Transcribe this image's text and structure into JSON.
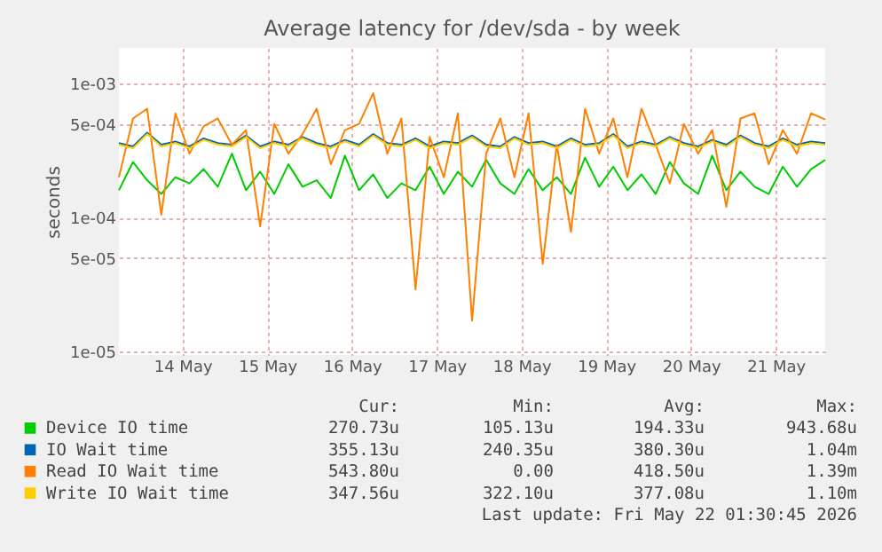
{
  "chart_data": {
    "type": "line",
    "title": "Average latency for /dev/sda - by week",
    "ylabel": "seconds",
    "log": true,
    "grid": true,
    "legend": "bottom",
    "marker": "none",
    "line_style": "solid",
    "xlim": [
      "2026-05-13T18:00",
      "2026-05-22T02:00"
    ],
    "xticks": [
      {
        "value": "2026-05-14T12:00",
        "label": "14 May"
      },
      {
        "value": "2026-05-15T12:00",
        "label": "15 May"
      },
      {
        "value": "2026-05-16T12:00",
        "label": "16 May"
      },
      {
        "value": "2026-05-17T12:00",
        "label": "17 May"
      },
      {
        "value": "2026-05-18T12:00",
        "label": "18 May"
      },
      {
        "value": "2026-05-19T12:00",
        "label": "19 May"
      },
      {
        "value": "2026-05-20T12:00",
        "label": "20 May"
      },
      {
        "value": "2026-05-21T12:00",
        "label": "21 May"
      }
    ],
    "ylim": [
      9.4e-06,
      0.00185
    ],
    "yticks": [
      {
        "value": 1e-05,
        "label": "1e-05"
      },
      {
        "value": 5e-05,
        "label": "5e-05"
      },
      {
        "value": 0.0001,
        "label": "1e-04"
      },
      {
        "value": 0.0005,
        "label": "5e-04"
      },
      {
        "value": 0.001,
        "label": "1e-03"
      }
    ],
    "x": [
      "2026-05-13T18:00",
      "2026-05-13T22:00",
      "2026-05-14T02:00",
      "2026-05-14T06:00",
      "2026-05-14T10:00",
      "2026-05-14T14:00",
      "2026-05-14T18:00",
      "2026-05-14T22:00",
      "2026-05-15T02:00",
      "2026-05-15T06:00",
      "2026-05-15T10:00",
      "2026-05-15T14:00",
      "2026-05-15T18:00",
      "2026-05-15T22:00",
      "2026-05-16T02:00",
      "2026-05-16T06:00",
      "2026-05-16T10:00",
      "2026-05-16T14:00",
      "2026-05-16T18:00",
      "2026-05-16T22:00",
      "2026-05-17T02:00",
      "2026-05-17T06:00",
      "2026-05-17T10:00",
      "2026-05-17T14:00",
      "2026-05-17T18:00",
      "2026-05-17T22:00",
      "2026-05-18T02:00",
      "2026-05-18T06:00",
      "2026-05-18T10:00",
      "2026-05-18T14:00",
      "2026-05-18T18:00",
      "2026-05-18T22:00",
      "2026-05-19T02:00",
      "2026-05-19T06:00",
      "2026-05-19T10:00",
      "2026-05-19T14:00",
      "2026-05-19T18:00",
      "2026-05-19T22:00",
      "2026-05-20T02:00",
      "2026-05-20T06:00",
      "2026-05-20T10:00",
      "2026-05-20T14:00",
      "2026-05-20T18:00",
      "2026-05-20T22:00",
      "2026-05-21T02:00",
      "2026-05-21T06:00",
      "2026-05-21T10:00",
      "2026-05-21T14:00",
      "2026-05-21T18:00",
      "2026-05-21T22:00",
      "2026-05-22T02:00"
    ],
    "series": [
      {
        "name": "Device IO time",
        "color": "#00cc00",
        "values": [
          0.00016,
          0.00026,
          0.00019,
          0.00015,
          0.0002,
          0.00018,
          0.00023,
          0.00017,
          0.0003,
          0.00016,
          0.00022,
          0.00015,
          0.00025,
          0.00017,
          0.00019,
          0.00014,
          0.00029,
          0.00016,
          0.00021,
          0.00014,
          0.00018,
          0.00016,
          0.00024,
          0.00015,
          0.00022,
          0.00017,
          0.00027,
          0.00018,
          0.00015,
          0.00023,
          0.00016,
          0.0002,
          0.00015,
          0.00028,
          0.00017,
          0.00024,
          0.00016,
          0.00021,
          0.00015,
          0.00026,
          0.00018,
          0.00015,
          0.00029,
          0.00016,
          0.00022,
          0.00017,
          0.00015,
          0.00024,
          0.00017,
          0.00023,
          0.00027
        ]
      },
      {
        "name": "IO Wait time",
        "color": "#0066b3",
        "values": [
          0.00036,
          0.00034,
          0.00043,
          0.00035,
          0.00037,
          0.00034,
          0.00039,
          0.00036,
          0.00035,
          0.00041,
          0.00034,
          0.00037,
          0.00035,
          0.0004,
          0.00036,
          0.00034,
          0.00038,
          0.00035,
          0.00042,
          0.00036,
          0.00035,
          0.00039,
          0.00034,
          0.00037,
          0.00036,
          0.00041,
          0.00035,
          0.00034,
          0.0004,
          0.00036,
          0.00037,
          0.00034,
          0.00039,
          0.00035,
          0.00036,
          0.00042,
          0.00034,
          0.00037,
          0.00035,
          0.0004,
          0.00036,
          0.00034,
          0.00038,
          0.00035,
          0.00041,
          0.00036,
          0.00034,
          0.00039,
          0.00035,
          0.00037,
          0.00036
        ]
      },
      {
        "name": "Read IO Wait time",
        "color": "#ff8000",
        "values": [
          0.0002,
          0.00055,
          0.00065,
          0.000105,
          0.0006,
          0.0003,
          0.00048,
          0.00055,
          0.00035,
          0.00045,
          8.6e-05,
          0.0005,
          0.0003,
          0.00042,
          0.00065,
          0.00025,
          0.00045,
          0.0005,
          0.00085,
          0.0003,
          0.00055,
          2.9e-05,
          0.0004,
          0.0002,
          0.0006,
          1.7e-05,
          0.0003,
          0.00055,
          0.0002,
          0.0006,
          4.5e-05,
          0.00035,
          7.8e-05,
          0.00065,
          0.0003,
          0.00055,
          0.0002,
          0.00065,
          0.00035,
          0.00018,
          0.0005,
          0.0003,
          0.00045,
          0.00012,
          0.00055,
          0.0006,
          0.00025,
          0.00045,
          0.0003,
          0.0006,
          0.00054
        ]
      },
      {
        "name": "Write IO Wait time",
        "color": "#ffcc00",
        "values": [
          0.00035,
          0.00033,
          0.00042,
          0.00034,
          0.00036,
          0.00033,
          0.00038,
          0.00035,
          0.00034,
          0.0004,
          0.00033,
          0.00036,
          0.00034,
          0.00039,
          0.00035,
          0.00033,
          0.00037,
          0.00034,
          0.00041,
          0.00035,
          0.00034,
          0.00038,
          0.00033,
          0.00036,
          0.00035,
          0.0004,
          0.00034,
          0.00033,
          0.00039,
          0.00035,
          0.00036,
          0.00033,
          0.00038,
          0.00034,
          0.00035,
          0.00041,
          0.00033,
          0.00036,
          0.00034,
          0.00039,
          0.00035,
          0.00033,
          0.00037,
          0.00034,
          0.0004,
          0.00035,
          0.00033,
          0.00038,
          0.00034,
          0.00036,
          0.00035
        ]
      }
    ],
    "annotations": [
      "Cur:",
      "Min:",
      "Avg:",
      "Max:",
      "270.73u",
      "105.13u",
      "194.33u",
      "943.68u",
      "355.13u",
      "240.35u",
      "380.30u",
      "1.04m",
      "543.80u",
      "0.00",
      "418.50u",
      "1.39m",
      "347.56u",
      "322.10u",
      "377.08u",
      "1.10m",
      "Last update: Fri May 22 01:30:45 2026"
    ]
  }
}
